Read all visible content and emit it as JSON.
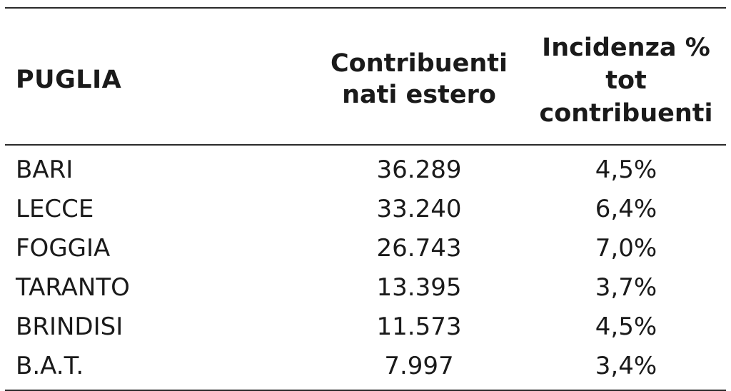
{
  "table": {
    "headers": {
      "region": "PUGLIA",
      "contributors_lines": [
        "Contribuenti",
        "nati estero"
      ],
      "incidence_lines": [
        "Incidenza %",
        "tot",
        "contribuenti"
      ]
    },
    "rows": [
      {
        "province": "BARI",
        "contributors": "36.289",
        "incidence": "4,5%"
      },
      {
        "province": "LECCE",
        "contributors": "33.240",
        "incidence": "6,4%"
      },
      {
        "province": "FOGGIA",
        "contributors": "26.743",
        "incidence": "7,0%"
      },
      {
        "province": "TARANTO",
        "contributors": "13.395",
        "incidence": "3,7%"
      },
      {
        "province": "BRINDISI",
        "contributors": "11.573",
        "incidence": "4,5%"
      },
      {
        "province": "B.A.T.",
        "contributors": "7.997",
        "incidence": "3,4%"
      }
    ]
  }
}
